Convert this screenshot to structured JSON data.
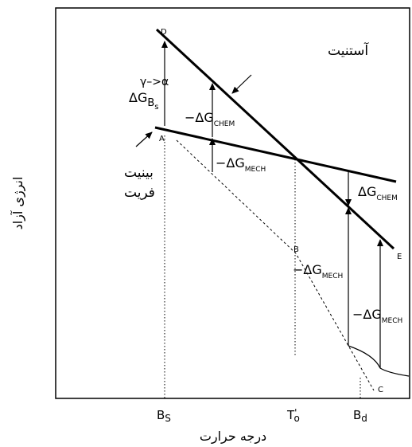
{
  "axes": {
    "x_label": "درجه حرارت",
    "y_label": "انرژی آزاد",
    "x_ticks": {
      "bs_main": "B",
      "bs_sub": "S",
      "t0_main": "T",
      "t0_sub": "o",
      "t0_prime": "'",
      "bd_main": "B",
      "bd_sub": "d"
    }
  },
  "phases": {
    "austenite": "آستنیت",
    "bainite_line1": "بینیت",
    "bainite_line2": "فریت"
  },
  "points": {
    "A": "A",
    "B": "B",
    "C": "C",
    "D": "D",
    "E": "E"
  },
  "annotations": {
    "dg_bs": {
      "delta": "ΔG",
      "sub_main": "B",
      "sub_sub": "s",
      "sup": "γ–>α"
    },
    "dg_chem_left": {
      "prefix": "−ΔG",
      "sub": "CHEM"
    },
    "dg_mech_left": {
      "prefix": "−ΔG",
      "sub": "MECH"
    },
    "dg_chem_right": {
      "prefix": "ΔG",
      "sub": "CHEM"
    },
    "dg_mech_right": {
      "prefix": "−ΔG",
      "sub": "MECH"
    },
    "dg_mech_far": {
      "prefix": "−ΔG",
      "sub": "MECH"
    }
  },
  "colors": {
    "line": "#000000",
    "background": "#ffffff"
  }
}
